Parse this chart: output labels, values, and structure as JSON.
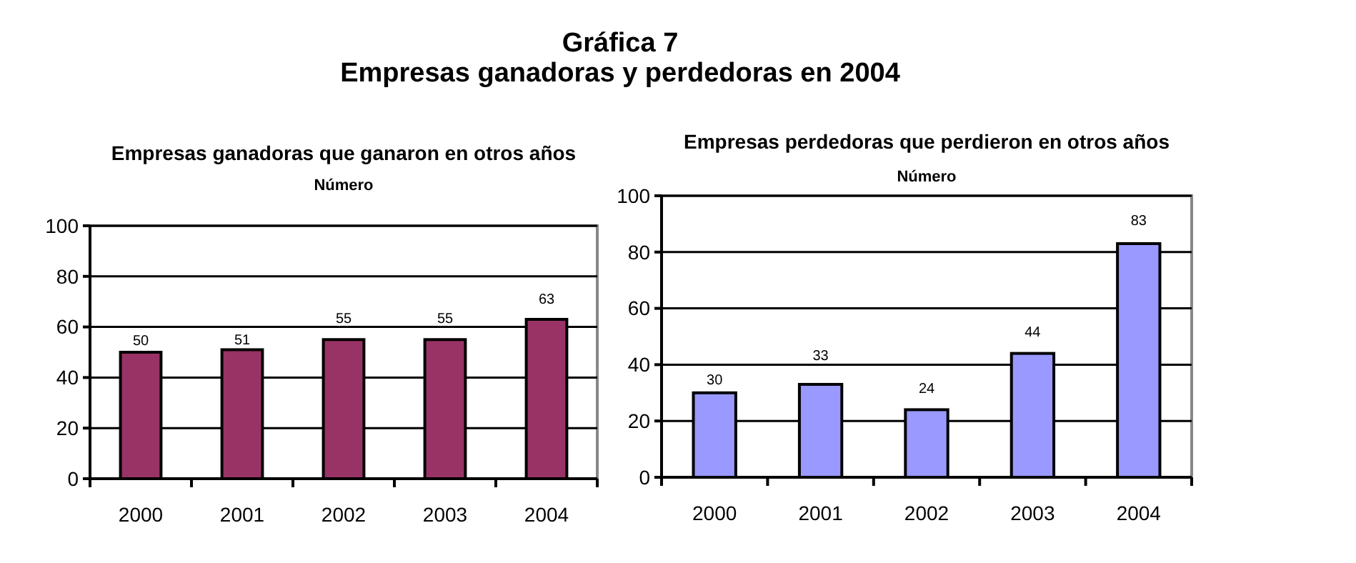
{
  "chart_data": [
    {
      "type": "bar",
      "title": "Empresas ganadoras que ganaron en otros años",
      "subtitle": "Número",
      "annotations": [
        "Gráfica 7",
        "Empresas ganadoras y perdedoras en 2004"
      ],
      "categories": [
        "2000",
        "2001",
        "2002",
        "2003",
        "2004"
      ],
      "values": [
        50,
        51,
        55,
        55,
        63
      ],
      "color": "#993366",
      "ylim": [
        0,
        100
      ],
      "yticks": [
        0,
        20,
        40,
        60,
        80,
        100
      ],
      "grid": "y",
      "data_labels": true
    },
    {
      "type": "bar",
      "title": "Empresas perdedoras que perdieron en otros años",
      "subtitle": "Número",
      "categories": [
        "2000",
        "2001",
        "2002",
        "2003",
        "2004"
      ],
      "values": [
        30,
        33,
        24,
        44,
        83
      ],
      "color": "#9999ff",
      "ylim": [
        0,
        100
      ],
      "yticks": [
        0,
        20,
        40,
        60,
        80,
        100
      ],
      "grid": "y",
      "data_labels": true
    }
  ]
}
